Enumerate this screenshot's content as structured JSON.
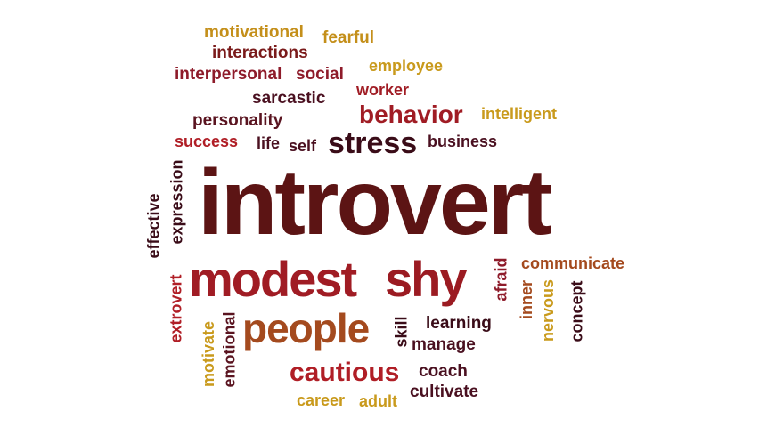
{
  "palette": {
    "dark": "#4a1020",
    "darkred": "#6b1a1a",
    "red": "#a01c24",
    "crimson": "#8e1b2a",
    "brown": "#9b4a22",
    "gold": "#c99a1c",
    "black": "#2b0f16"
  },
  "words": [
    {
      "id": "introvert",
      "text": "introvert",
      "color": "#5c1414"
    },
    {
      "id": "modest",
      "text": "modest",
      "color": "#a01c24"
    },
    {
      "id": "shy",
      "text": "shy",
      "color": "#9b1b22"
    },
    {
      "id": "people",
      "text": "people",
      "color": "#a44a1e"
    },
    {
      "id": "cautious",
      "text": "cautious",
      "color": "#b01e26"
    },
    {
      "id": "stress",
      "text": "stress",
      "color": "#3a0c18"
    },
    {
      "id": "behavior",
      "text": "behavior",
      "color": "#a01c24"
    },
    {
      "id": "motivational",
      "text": "motivational",
      "color": "#c48f1a"
    },
    {
      "id": "fearful",
      "text": "fearful",
      "color": "#c48f1a"
    },
    {
      "id": "interactions",
      "text": "interactions",
      "color": "#7a1a1a"
    },
    {
      "id": "employee",
      "text": "employee",
      "color": "#c99a1c"
    },
    {
      "id": "interpersonal",
      "text": "interpersonal",
      "color": "#8e1b2a"
    },
    {
      "id": "social",
      "text": "social",
      "color": "#8e1b2a"
    },
    {
      "id": "worker",
      "text": "worker",
      "color": "#a01c24"
    },
    {
      "id": "sarcastic",
      "text": "sarcastic",
      "color": "#4a1020"
    },
    {
      "id": "intelligent",
      "text": "intelligent",
      "color": "#c99a1c"
    },
    {
      "id": "personality",
      "text": "personality",
      "color": "#5a1420"
    },
    {
      "id": "success",
      "text": "success",
      "color": "#b01e26"
    },
    {
      "id": "life",
      "text": "life",
      "color": "#4a1020"
    },
    {
      "id": "self",
      "text": "self",
      "color": "#4a1020"
    },
    {
      "id": "business",
      "text": "business",
      "color": "#4a1020"
    },
    {
      "id": "expression",
      "text": "expression",
      "color": "#3a0c18"
    },
    {
      "id": "effective",
      "text": "effective",
      "color": "#3a0c18"
    },
    {
      "id": "communicate",
      "text": "communicate",
      "color": "#a44a1e"
    },
    {
      "id": "afraid",
      "text": "afraid",
      "color": "#8e1b2a"
    },
    {
      "id": "inner",
      "text": "inner",
      "color": "#a44a1e"
    },
    {
      "id": "nervous",
      "text": "nervous",
      "color": "#c99a1c"
    },
    {
      "id": "concept",
      "text": "concept",
      "color": "#3a0c18"
    },
    {
      "id": "extrovert",
      "text": "extrovert",
      "color": "#b01e26"
    },
    {
      "id": "motivate",
      "text": "motivate",
      "color": "#c99a1c"
    },
    {
      "id": "emotional",
      "text": "emotional",
      "color": "#5a1420"
    },
    {
      "id": "skill",
      "text": "skill",
      "color": "#3a0c18"
    },
    {
      "id": "learning",
      "text": "learning",
      "color": "#3a0c18"
    },
    {
      "id": "manage",
      "text": "manage",
      "color": "#4a1020"
    },
    {
      "id": "coach",
      "text": "coach",
      "color": "#4a1020"
    },
    {
      "id": "cultivate",
      "text": "cultivate",
      "color": "#4a1020"
    },
    {
      "id": "career",
      "text": "career",
      "color": "#c99a1c"
    },
    {
      "id": "adult",
      "text": "adult",
      "color": "#c99a1c"
    }
  ]
}
